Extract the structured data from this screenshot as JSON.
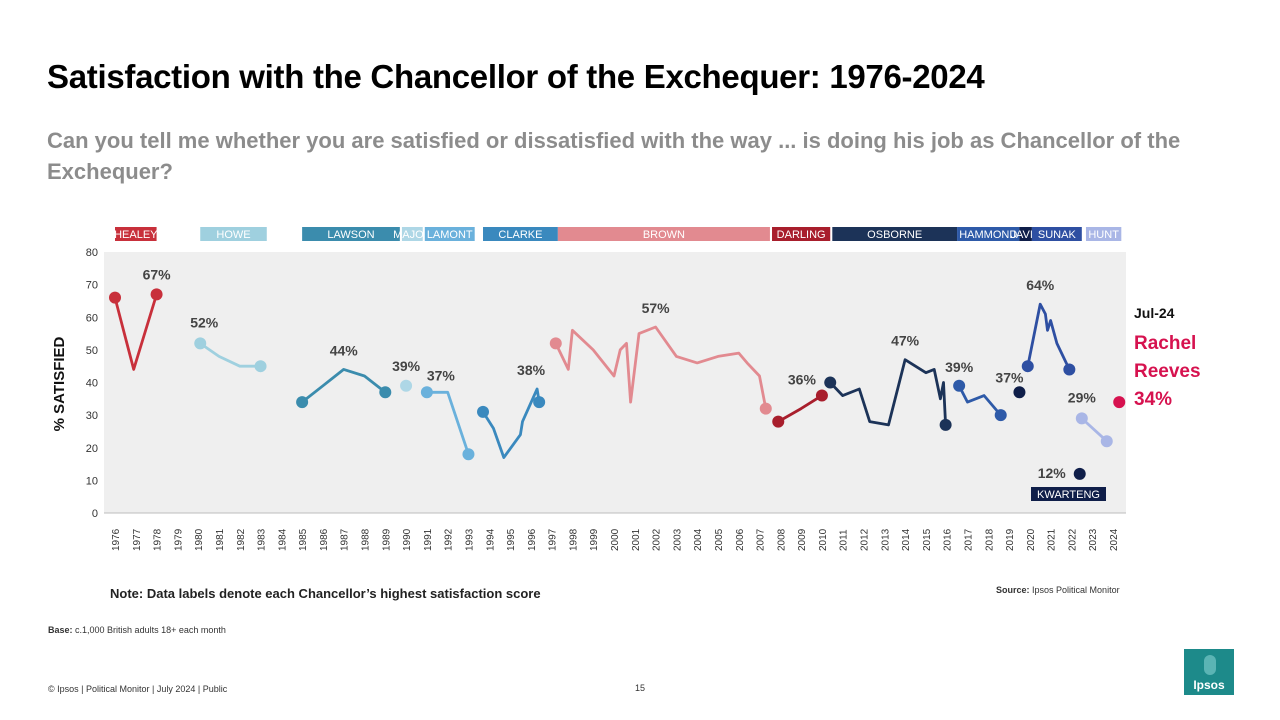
{
  "title": "Satisfaction with the Chancellor of the Exchequer: 1976-2024",
  "subtitle": "Can you tell me whether you are satisfied or dissatisfied with the way ... is doing his job as Chancellor of the Exchequer?",
  "note": "Note: Data labels denote each Chancellor’s highest satisfaction score",
  "source": {
    "label": "Source:",
    "text": "Ipsos Political Monitor"
  },
  "base": {
    "label": "Base:",
    "text": "c.1,000 British adults 18+ each month"
  },
  "footer": "© Ipsos | Political Monitor | July 2024 | Public",
  "page_number": "15",
  "logo_text": "Ipsos",
  "callout": {
    "date": "Jul-24",
    "name_line1": "Rachel",
    "name_line2": "Reeves",
    "value": "34%",
    "color": "#d6124f"
  },
  "chart_data": {
    "type": "line",
    "ylabel": "% SATISFIED",
    "ylim": [
      0,
      80
    ],
    "yticks": [
      0,
      10,
      20,
      30,
      40,
      50,
      60,
      70,
      80
    ],
    "xlim": [
      1976,
      2024
    ],
    "xticks": [
      "1976",
      "1977",
      "1978",
      "1979",
      "1980",
      "1981",
      "1982",
      "1983",
      "1984",
      "1985",
      "1986",
      "1987",
      "1988",
      "1989",
      "1990",
      "1991",
      "1992",
      "1993",
      "1994",
      "1995",
      "1996",
      "1997",
      "1998",
      "1999",
      "2000",
      "2001",
      "2002",
      "2003",
      "2004",
      "2005",
      "2006",
      "2007",
      "2008",
      "2009",
      "2010",
      "2011",
      "2012",
      "2013",
      "2014",
      "2015",
      "2016",
      "2017",
      "2018",
      "2019",
      "2020",
      "2021",
      "2022",
      "2023",
      "2024"
    ],
    "series": [
      {
        "name": "HEALEY",
        "color": "#c8303b",
        "start": 1976.0,
        "end": 1978.0,
        "points": [
          [
            1976.0,
            66
          ],
          [
            1976.9,
            44
          ],
          [
            1978.0,
            67
          ]
        ],
        "label": "67%",
        "label_at": [
          1978.0,
          67
        ]
      },
      {
        "name": "HOWE",
        "color": "#9fd0df",
        "start": 1980.1,
        "end": 1983.3,
        "points": [
          [
            1980.1,
            52
          ],
          [
            1981.0,
            48
          ],
          [
            1982.0,
            45
          ],
          [
            1983.0,
            45
          ]
        ],
        "label": "52%",
        "label_at": [
          1980.1,
          52
        ]
      },
      {
        "name": "LAWSON",
        "color": "#3b8cad",
        "start": 1985.0,
        "end": 1989.7,
        "points": [
          [
            1985.0,
            34
          ],
          [
            1986.0,
            39
          ],
          [
            1987.0,
            44
          ],
          [
            1988.0,
            42
          ],
          [
            1989.0,
            37
          ]
        ],
        "label": "44%",
        "label_at": [
          1987.0,
          44
        ]
      },
      {
        "name": "MAJOR",
        "color": "#aed7e6",
        "start": 1989.8,
        "end": 1990.8,
        "points": [
          [
            1990.0,
            39
          ]
        ],
        "label": "39%",
        "label_at": [
          1990.0,
          39
        ]
      },
      {
        "name": "LAMONT",
        "color": "#6ab1dc",
        "start": 1990.9,
        "end": 1993.3,
        "points": [
          [
            1991.0,
            37
          ],
          [
            1992.0,
            37
          ],
          [
            1993.0,
            18
          ]
        ],
        "label": "37%",
        "label_at": [
          1991.0,
          37
        ]
      },
      {
        "name": "CLARKE",
        "color": "#3a89be",
        "start": 1993.7,
        "end": 1997.3,
        "points": [
          [
            1993.7,
            31
          ],
          [
            1994.2,
            26
          ],
          [
            1994.7,
            17
          ],
          [
            1995.5,
            24
          ],
          [
            1995.6,
            28
          ],
          [
            1996.3,
            38
          ],
          [
            1996.4,
            34
          ]
        ],
        "label": "38%",
        "label_at": [
          1996.3,
          38
        ]
      },
      {
        "name": "BROWN",
        "color": "#e28a90",
        "start": 1997.3,
        "end": 2007.5,
        "points": [
          [
            1997.2,
            52
          ],
          [
            1997.8,
            44
          ],
          [
            1998.0,
            56
          ],
          [
            1999.0,
            50
          ],
          [
            2000.0,
            42
          ],
          [
            2000.3,
            50
          ],
          [
            2000.6,
            52
          ],
          [
            2000.8,
            34
          ],
          [
            2001.2,
            55
          ],
          [
            2002.0,
            57
          ],
          [
            2003.0,
            48
          ],
          [
            2004.0,
            46
          ],
          [
            2005.0,
            48
          ],
          [
            2006.0,
            49
          ],
          [
            2006.4,
            46
          ],
          [
            2007.0,
            42
          ],
          [
            2007.3,
            32
          ]
        ],
        "label": "57%",
        "label_at": [
          2002.0,
          57
        ]
      },
      {
        "name": "DARLING",
        "color": "#a81e2c",
        "start": 2007.6,
        "end": 2010.4,
        "points": [
          [
            2007.9,
            28
          ],
          [
            2009.0,
            32
          ],
          [
            2010.0,
            36
          ]
        ],
        "label": "36%",
        "label_at": [
          2010.0,
          36
        ]
      },
      {
        "name": "OSBORNE",
        "color": "#1c3358",
        "start": 2010.5,
        "end": 2016.5,
        "points": [
          [
            2010.4,
            40
          ],
          [
            2011.0,
            36
          ],
          [
            2011.8,
            38
          ],
          [
            2012.3,
            28
          ],
          [
            2013.2,
            27
          ],
          [
            2014.0,
            47
          ],
          [
            2015.0,
            43
          ],
          [
            2015.4,
            44
          ],
          [
            2015.7,
            35
          ],
          [
            2015.85,
            40
          ],
          [
            2015.95,
            27
          ]
        ],
        "label": "47%",
        "label_at": [
          2014.0,
          47
        ]
      },
      {
        "name": "HAMMOND",
        "color": "#2e5aa8",
        "start": 2016.5,
        "end": 2019.5,
        "points": [
          [
            2016.6,
            39
          ],
          [
            2017.0,
            34
          ],
          [
            2017.8,
            36
          ],
          [
            2018.6,
            30
          ]
        ],
        "label": "39%",
        "label_at": [
          2016.6,
          39
        ]
      },
      {
        "name": "JAVID",
        "color": "#0f1e49",
        "start": 2019.5,
        "end": 2020.1,
        "points": [
          [
            2019.5,
            37
          ]
        ],
        "label": "37%",
        "label_at": [
          2019.5,
          37
        ]
      },
      {
        "name": "SUNAK",
        "color": "#2e4fa2",
        "start": 2020.1,
        "end": 2022.5,
        "points": [
          [
            2019.9,
            45
          ],
          [
            2020.5,
            64
          ],
          [
            2020.75,
            61
          ],
          [
            2020.85,
            56
          ],
          [
            2021.0,
            59
          ],
          [
            2021.3,
            52
          ],
          [
            2021.9,
            44
          ]
        ],
        "label": "64%",
        "label_at": [
          2020.5,
          64
        ]
      },
      {
        "name": "KWARTENG",
        "color": "#0f1e49",
        "start": 2022.7,
        "end": 2022.9,
        "points": [
          [
            2022.4,
            12
          ]
        ],
        "label": "12%",
        "label_at": [
          2022.4,
          12
        ]
      },
      {
        "name": "HUNT",
        "color": "#a9b6e6",
        "start": 2022.7,
        "end": 2024.4,
        "points": [
          [
            2022.5,
            29
          ],
          [
            2023.7,
            22
          ]
        ],
        "label": "29%",
        "label_at": [
          2022.5,
          29
        ]
      },
      {
        "name": "REEVES",
        "color": "#d6124f",
        "start": 2024.5,
        "end": 2024.5,
        "points": [
          [
            2024.3,
            34
          ]
        ],
        "label": "",
        "label_at": [
          2024.3,
          34
        ]
      }
    ]
  }
}
